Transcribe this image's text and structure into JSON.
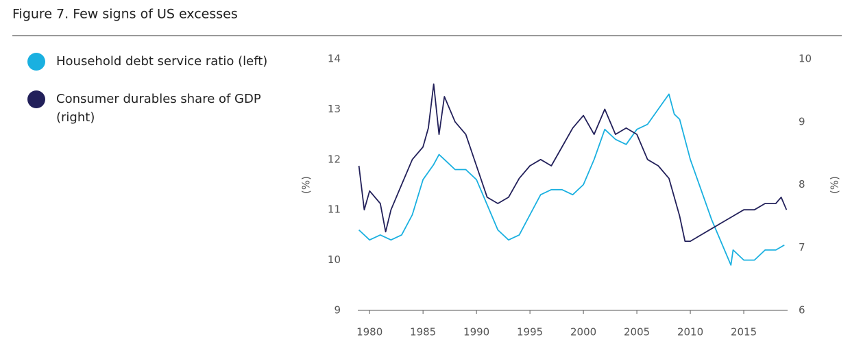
{
  "chart_data": {
    "type": "line",
    "title": "Figure 7. Few signs of US excesses",
    "ylabel": "(%)",
    "y2label": "(%)",
    "xlim": [
      1978.9,
      2019.1
    ],
    "xticks": [
      1980,
      1985,
      1990,
      1995,
      2000,
      2005,
      2010,
      2015
    ],
    "ylim": [
      9,
      14
    ],
    "yticks": [
      9,
      10,
      11,
      12,
      13,
      14
    ],
    "y2lim": [
      6,
      10
    ],
    "y2ticks": [
      6,
      7,
      8,
      9,
      10
    ],
    "series": [
      {
        "name": "Household debt service ratio (left)",
        "color": "#1ab0e0",
        "x": [
          1979,
          1980,
          1981,
          1982,
          1983,
          1984,
          1985,
          1986,
          1986.5,
          1987,
          1988,
          1989,
          1990,
          1991,
          1992,
          1993,
          1994,
          1995,
          1996,
          1997,
          1998,
          1999,
          2000,
          2001,
          2002,
          2003,
          2004,
          2005,
          2006,
          2007,
          2008,
          2008.5,
          2009,
          2010,
          2011,
          2012,
          2013,
          2013.8,
          2014,
          2015,
          2016,
          2017,
          2018,
          2018.8
        ],
        "values": [
          10.6,
          10.4,
          10.5,
          10.4,
          10.5,
          10.9,
          11.6,
          11.9,
          12.1,
          12.0,
          11.8,
          11.8,
          11.6,
          11.1,
          10.6,
          10.4,
          10.5,
          10.9,
          11.3,
          11.4,
          11.4,
          11.3,
          11.5,
          12.0,
          12.6,
          12.4,
          12.3,
          12.6,
          12.7,
          13.0,
          13.3,
          12.9,
          12.8,
          12.0,
          11.4,
          10.8,
          10.3,
          9.9,
          10.2,
          10.0,
          10.0,
          10.2,
          10.2,
          10.3
        ]
      },
      {
        "name": "Consumer durables share of GDP (right)",
        "color": "#22205a",
        "axis": "y2",
        "x": [
          1979,
          1979.5,
          1980,
          1981,
          1981.5,
          1982,
          1983,
          1984,
          1985,
          1985.5,
          1986,
          1986.5,
          1987,
          1988,
          1989,
          1990,
          1991,
          1992,
          1993,
          1994,
          1995,
          1996,
          1997,
          1998,
          1999,
          2000,
          2001,
          2002,
          2003,
          2004,
          2005,
          2006,
          2007,
          2008,
          2009,
          2009.5,
          2010,
          2011,
          2012,
          2013,
          2014,
          2015,
          2016,
          2017,
          2018,
          2018.5,
          2019
        ],
        "values": [
          8.3,
          7.6,
          7.9,
          7.7,
          7.25,
          7.6,
          8.0,
          8.4,
          8.6,
          8.9,
          9.6,
          8.8,
          9.4,
          9.0,
          8.8,
          8.3,
          7.8,
          7.7,
          7.8,
          8.1,
          8.3,
          8.4,
          8.3,
          8.6,
          8.9,
          9.1,
          8.8,
          9.2,
          8.8,
          8.9,
          8.8,
          8.4,
          8.3,
          8.1,
          7.5,
          7.1,
          7.1,
          7.2,
          7.3,
          7.4,
          7.5,
          7.6,
          7.6,
          7.7,
          7.7,
          7.8,
          7.6
        ]
      }
    ]
  }
}
